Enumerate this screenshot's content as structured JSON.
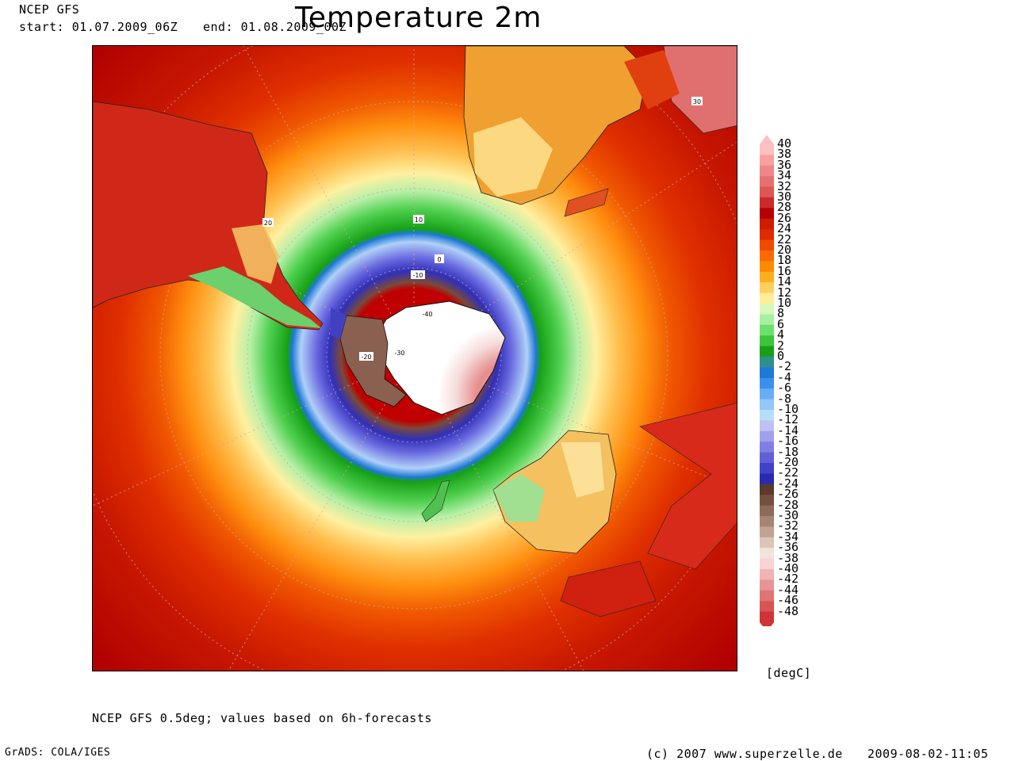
{
  "header": {
    "model": "NCEP GFS",
    "start_label": "start: 01.07.2009_06Z",
    "end_label": "end: 01.08.2009_00Z",
    "title": "Temperature 2m"
  },
  "legend": {
    "unit": "[degC]",
    "levels": [
      40,
      38,
      36,
      34,
      32,
      30,
      28,
      26,
      24,
      22,
      20,
      18,
      16,
      14,
      12,
      10,
      8,
      6,
      4,
      2,
      0,
      -2,
      -4,
      -6,
      -8,
      -10,
      -12,
      -14,
      -16,
      -18,
      -20,
      -22,
      -24,
      -26,
      -28,
      -30,
      -32,
      -34,
      -36,
      -38,
      -40,
      -42,
      -44,
      -46,
      -48
    ],
    "colors": [
      "#ffc0c0",
      "#f6a0a0",
      "#ee8888",
      "#e67070",
      "#dd5555",
      "#cc2a2a",
      "#b40000",
      "#cd1c00",
      "#e22a00",
      "#f04a00",
      "#fb6a00",
      "#ff8a00",
      "#ffae20",
      "#ffd060",
      "#ffee98",
      "#d8f8b8",
      "#a8f0a0",
      "#6ce06c",
      "#3cc43c",
      "#16a016",
      "#2f8f8f",
      "#1e78d6",
      "#3c90ec",
      "#68acf6",
      "#90c8fa",
      "#b8def6",
      "#c0c0f4",
      "#a0a0ec",
      "#8080e4",
      "#6060d8",
      "#4242c8",
      "#2a2ab0",
      "#5a3a2a",
      "#76503e",
      "#8e6a58",
      "#a88474",
      "#c2a292",
      "#dcc4b8",
      "#f2e4dc",
      "#f8d4d4",
      "#f0b4b4",
      "#e89494",
      "#e07474",
      "#d85454",
      "#d03434"
    ]
  },
  "map": {
    "contour_labels": [
      {
        "text": "20",
        "type": "tropics"
      },
      {
        "text": "10",
        "type": "midlat"
      },
      {
        "text": "0",
        "type": "ice-edge"
      },
      {
        "text": "-10",
        "type": "sea-ice"
      },
      {
        "text": "-20",
        "type": "coast"
      },
      {
        "text": "-30",
        "type": "interior"
      },
      {
        "text": "-40",
        "type": "plateau"
      },
      {
        "text": "30",
        "type": "arabia"
      }
    ]
  },
  "footer": {
    "source_note": "NCEP GFS 0.5deg; values based on 6h-forecasts",
    "software": "GrADS: COLA/IGES",
    "copyright": "(c) 2007 www.superzelle.de",
    "timestamp": "2009-08-02-11:05"
  }
}
